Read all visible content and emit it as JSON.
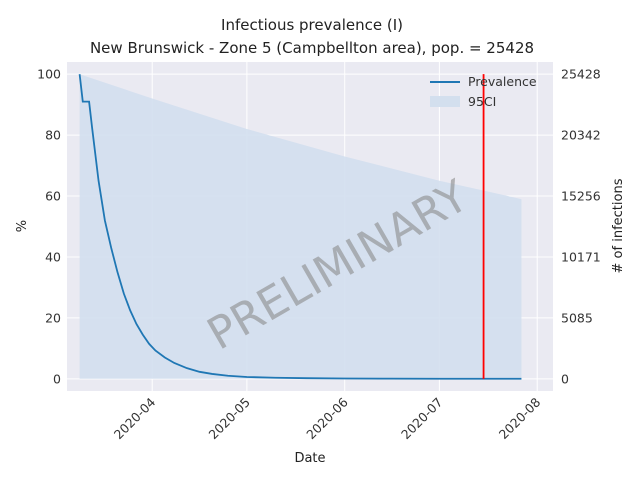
{
  "chart_data": {
    "type": "line",
    "title_line1": "Infectious prevalence (I)",
    "title_line2": "New Brunswick - Zone 5 (Campbellton area), pop. = 25428",
    "xlabel": "Date",
    "ylabel": "%",
    "ylabel_right": "# of infections",
    "x_ticks": [
      "2020-04",
      "2020-05",
      "2020-06",
      "2020-07",
      "2020-08"
    ],
    "y_ticks": [
      "0",
      "20",
      "40",
      "60",
      "80",
      "100"
    ],
    "y_right_ticks": [
      "0",
      "5085",
      "10171",
      "15256",
      "20342",
      "25428"
    ],
    "ylim": [
      -4,
      104
    ],
    "legend": [
      "Prevalence",
      "95CI"
    ],
    "legend_position": "top-right",
    "watermark": "PRELIMINARY",
    "grid": true,
    "colors": {
      "background": "#eaeaf2",
      "line": "#1f77b4",
      "ci_fill": "#d3dfee",
      "vline": "#ff0000",
      "grid": "#ffffff"
    },
    "series": [
      {
        "name": "Prevalence",
        "x": [
          "2020-03-09",
          "2020-03-10",
          "2020-03-11",
          "2020-03-12",
          "2020-03-13",
          "2020-03-15",
          "2020-03-17",
          "2020-03-19",
          "2020-03-21",
          "2020-03-23",
          "2020-03-25",
          "2020-03-27",
          "2020-03-29",
          "2020-03-31",
          "2020-04-02",
          "2020-04-05",
          "2020-04-08",
          "2020-04-12",
          "2020-04-16",
          "2020-04-20",
          "2020-04-25",
          "2020-05-01",
          "2020-05-10",
          "2020-05-20",
          "2020-06-01",
          "2020-06-15",
          "2020-07-01",
          "2020-07-15",
          "2020-07-27"
        ],
        "y": [
          100,
          91,
          91,
          91,
          82,
          65,
          52,
          43,
          35,
          28,
          22.5,
          18,
          14.5,
          11.5,
          9.3,
          7,
          5.2,
          3.5,
          2.3,
          1.6,
          1.0,
          0.6,
          0.35,
          0.2,
          0.1,
          0.05,
          0.03,
          0.02,
          0.02
        ]
      }
    ],
    "ci_band": {
      "x": [
        "2020-03-09",
        "2020-04-01",
        "2020-05-01",
        "2020-06-01",
        "2020-07-01",
        "2020-07-27"
      ],
      "upper": [
        100,
        92,
        82,
        73,
        65,
        59
      ],
      "lower": [
        0,
        0,
        0,
        0,
        0,
        0
      ]
    },
    "vline_x": "2020-07-15"
  }
}
